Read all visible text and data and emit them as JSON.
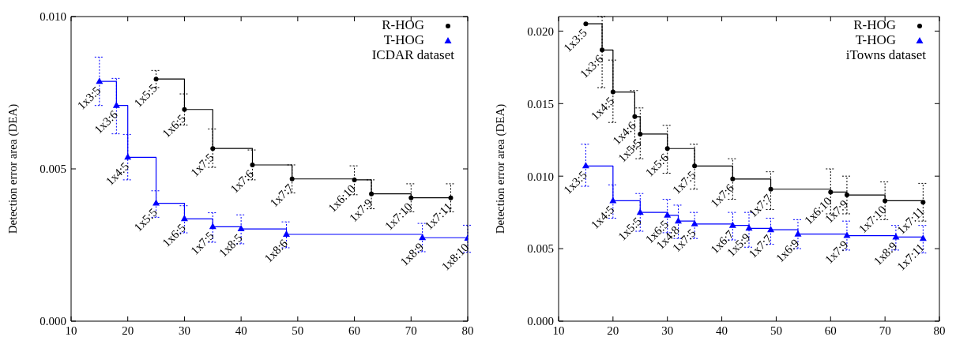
{
  "chart_data": [
    {
      "type": "step",
      "ylabel": "Detection error area (DEA)",
      "xlim": [
        10,
        80
      ],
      "xticks": [
        10,
        20,
        30,
        40,
        50,
        60,
        70,
        80
      ],
      "ylim": [
        0,
        0.01
      ],
      "yticks": [
        {
          "value": 0,
          "label": "0.000"
        },
        {
          "value": 0.005,
          "label": "0.005"
        },
        {
          "value": 0.01,
          "label": "0.010"
        }
      ],
      "legend": "top right",
      "line_style": "solid",
      "series": [
        {
          "name": "R-HOG",
          "color": "#000000",
          "marker": "circle",
          "x": [
            25,
            30,
            35,
            42,
            49,
            60,
            63,
            70,
            77
          ],
          "values": [
            0.00795,
            0.00695,
            0.00567,
            0.00513,
            0.00467,
            0.00464,
            0.00418,
            0.00405,
            0.00405
          ],
          "errors": [
            [
              0.00767,
              0.00823
            ],
            [
              0.00644,
              0.00746
            ],
            [
              0.00505,
              0.00631
            ],
            [
              0.00464,
              0.00562
            ],
            [
              0.00421,
              0.00513
            ],
            [
              0.00415,
              0.0051
            ],
            [
              0.00369,
              0.00464
            ],
            [
              0.00359,
              0.00451
            ],
            [
              0.00359,
              0.00451
            ]
          ]
        },
        {
          "name": "T-HOG",
          "color": "#0000ff",
          "marker": "triangle",
          "x": [
            15,
            18,
            20,
            25,
            30,
            35,
            40,
            48,
            72,
            80
          ],
          "values": [
            0.00787,
            0.00708,
            0.00538,
            0.00387,
            0.00336,
            0.0031,
            0.00303,
            0.00285,
            0.00274,
            0.00272
          ],
          "errors": [
            [
              0.00708,
              0.00867
            ],
            [
              0.00615,
              0.00797
            ],
            [
              0.00464,
              0.00613
            ],
            [
              0.00341,
              0.00428
            ],
            [
              0.0029,
              0.00379
            ],
            [
              0.00259,
              0.00356
            ],
            [
              0.00254,
              0.00349
            ],
            [
              0.00241,
              0.00326
            ],
            [
              0.00228,
              0.00321
            ],
            [
              0.00226,
              0.00315
            ]
          ]
        }
      ],
      "annotations": [
        {
          "text": "1x5:5",
          "x": 25,
          "y": 0.00795
        },
        {
          "text": "1x6:5",
          "x": 30,
          "y": 0.00695
        },
        {
          "text": "1x7:5",
          "x": 35,
          "y": 0.00567
        },
        {
          "text": "1x7:6",
          "x": 42,
          "y": 0.00513
        },
        {
          "text": "1x7:7",
          "x": 49,
          "y": 0.00467
        },
        {
          "text": "1x6:10",
          "x": 60,
          "y": 0.00464
        },
        {
          "text": "1x7:9",
          "x": 63,
          "y": 0.00418
        },
        {
          "text": "1x7:10",
          "x": 70,
          "y": 0.00405
        },
        {
          "text": "1x7:11",
          "x": 77,
          "y": 0.00405
        },
        {
          "text": "1x3:5",
          "x": 15,
          "y": 0.00787
        },
        {
          "text": "1x3:6",
          "x": 18,
          "y": 0.00708
        },
        {
          "text": "1x4:5",
          "x": 20,
          "y": 0.00538
        },
        {
          "text": "1x5:5",
          "x": 25,
          "y": 0.00387
        },
        {
          "text": "1x6:5",
          "x": 30,
          "y": 0.00336
        },
        {
          "text": "1x7:5",
          "x": 35,
          "y": 0.0031
        },
        {
          "text": "1x8:5",
          "x": 40,
          "y": 0.00303
        },
        {
          "text": "1x8:6",
          "x": 48,
          "y": 0.00285
        },
        {
          "text": "1x8:9",
          "x": 72,
          "y": 0.00274
        },
        {
          "text": "1x8:10",
          "x": 80,
          "y": 0.00272
        },
        "ICDAR dataset"
      ]
    },
    {
      "type": "step",
      "ylabel": "Detection error area (DEA)",
      "xlim": [
        10,
        80
      ],
      "xticks": [
        10,
        20,
        30,
        40,
        50,
        60,
        70,
        80
      ],
      "ylim": [
        0,
        0.021
      ],
      "yticks": [
        {
          "value": 0,
          "label": "0.000"
        },
        {
          "value": 0.005,
          "label": "0.005"
        },
        {
          "value": 0.01,
          "label": "0.010"
        },
        {
          "value": 0.015,
          "label": "0.015"
        },
        {
          "value": 0.02,
          "label": "0.020"
        }
      ],
      "legend": "top right",
      "line_style": "solid",
      "series": [
        {
          "name": "R-HOG",
          "color": "#000000",
          "marker": "circle",
          "x": [
            15,
            18,
            20,
            24,
            25,
            30,
            35,
            42,
            49,
            60,
            63,
            70,
            77
          ],
          "values": [
            0.0205,
            0.0187,
            0.0158,
            0.0141,
            0.0129,
            0.0119,
            0.0107,
            0.0098,
            0.0091,
            0.0089,
            0.0087,
            0.0083,
            0.0082
          ],
          "errors": [
            null,
            [
              0.0161,
              0.021
            ],
            [
              0.0137,
              0.018
            ],
            [
              0.012,
              0.0159
            ],
            [
              0.0112,
              0.0147
            ],
            [
              0.0102,
              0.0135
            ],
            [
              0.0091,
              0.0122
            ],
            [
              0.0084,
              0.0112
            ],
            [
              0.0077,
              0.0103
            ],
            [
              0.0074,
              0.0105
            ],
            [
              0.0074,
              0.01
            ],
            [
              0.007,
              0.0096
            ],
            [
              0.0069,
              0.0095
            ]
          ]
        },
        {
          "name": "T-HOG",
          "color": "#0000ff",
          "marker": "triangle",
          "x": [
            15,
            20,
            25,
            30,
            32,
            35,
            42,
            45,
            49,
            54,
            63,
            72,
            77
          ],
          "values": [
            0.0107,
            0.0083,
            0.0075,
            0.0073,
            0.0069,
            0.0067,
            0.0066,
            0.0064,
            0.0063,
            0.006,
            0.0059,
            0.0058,
            0.0057
          ],
          "errors": [
            [
              0.0093,
              0.0122
            ],
            [
              0.0071,
              0.0094
            ],
            [
              0.0062,
              0.0088
            ],
            [
              0.0061,
              0.0084
            ],
            [
              0.0057,
              0.008
            ],
            [
              0.0057,
              0.0075
            ],
            [
              0.0056,
              0.0075
            ],
            [
              0.0051,
              0.0075
            ],
            [
              0.0053,
              0.0071
            ],
            [
              0.005,
              0.007
            ],
            [
              0.0049,
              0.0069
            ],
            [
              0.0049,
              0.0066
            ],
            [
              0.0047,
              0.0066
            ]
          ]
        }
      ],
      "annotations": [
        {
          "text": "1x3:5",
          "x": 15,
          "y": 0.0205
        },
        {
          "text": "1x3:6",
          "x": 18,
          "y": 0.0187
        },
        {
          "text": "1x4:5",
          "x": 20,
          "y": 0.0158
        },
        {
          "text": "1x4:6",
          "x": 24,
          "y": 0.0141
        },
        {
          "text": "1x5:5",
          "x": 25,
          "y": 0.0129
        },
        {
          "text": "1x5:6",
          "x": 30,
          "y": 0.0119
        },
        {
          "text": "1x7:5",
          "x": 35,
          "y": 0.0107
        },
        {
          "text": "1x7:6",
          "x": 42,
          "y": 0.0098
        },
        {
          "text": "1x7:7",
          "x": 49,
          "y": 0.0091
        },
        {
          "text": "1x6:10",
          "x": 60,
          "y": 0.0089
        },
        {
          "text": "1x7:9",
          "x": 63,
          "y": 0.0087
        },
        {
          "text": "1x7:10",
          "x": 70,
          "y": 0.0083
        },
        {
          "text": "1x7:11",
          "x": 77,
          "y": 0.0082
        },
        {
          "text": "1x3:5",
          "x": 15,
          "y": 0.0107
        },
        {
          "text": "1x4:5",
          "x": 20,
          "y": 0.0083
        },
        {
          "text": "1x5:5",
          "x": 25,
          "y": 0.0075
        },
        {
          "text": "1x6:5",
          "x": 30,
          "y": 0.0073
        },
        {
          "text": "1x4:8",
          "x": 32,
          "y": 0.0069
        },
        {
          "text": "1x7:5",
          "x": 35,
          "y": 0.0067
        },
        {
          "text": "1x6:7",
          "x": 42,
          "y": 0.0066
        },
        {
          "text": "1x5:9",
          "x": 45,
          "y": 0.0064
        },
        {
          "text": "1x7:7",
          "x": 49,
          "y": 0.0063
        },
        {
          "text": "1x6:9",
          "x": 54,
          "y": 0.006
        },
        {
          "text": "1x7:9",
          "x": 63,
          "y": 0.0059
        },
        {
          "text": "1x8:9",
          "x": 72,
          "y": 0.0058
        },
        {
          "text": "1x7:11",
          "x": 77,
          "y": 0.0057
        },
        "iTowns dataset"
      ]
    }
  ]
}
